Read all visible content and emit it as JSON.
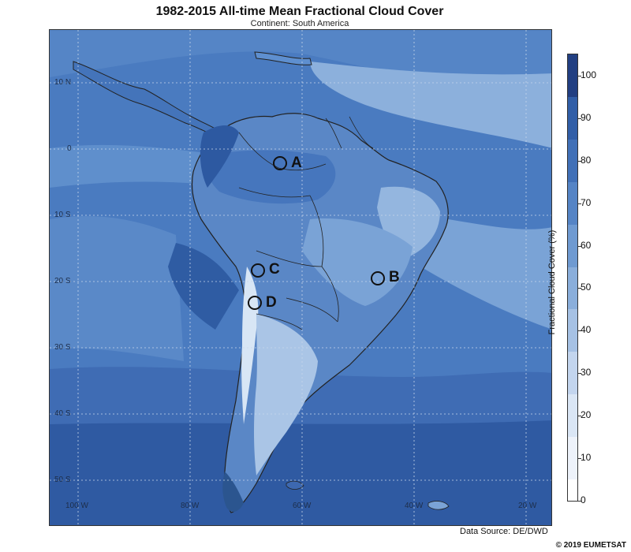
{
  "title": "1982-2015 All-time Mean Fractional Cloud Cover",
  "subtitle": "Continent: South America",
  "colorbar": {
    "title": "Fractional Cloud Cover (%)",
    "ticks": [
      "0",
      "10",
      "20",
      "30",
      "40",
      "50",
      "60",
      "70",
      "80",
      "90",
      "100"
    ],
    "colors": [
      "#ffffff",
      "#edf2fa",
      "#dae6f5",
      "#c3d5ee",
      "#a6c1e4",
      "#8aaedb",
      "#6f9ad1",
      "#5584c5",
      "#4170b7",
      "#315ea7",
      "#223f82"
    ],
    "min": 0,
    "max": 105
  },
  "lat_labels": [
    "10 N",
    "0",
    "10 S",
    "20 S",
    "30 S",
    "40 S",
    "50 S"
  ],
  "lon_labels": [
    "100 W",
    "80 W",
    "60 W",
    "40 W",
    "20 W"
  ],
  "markers": [
    {
      "label": "A"
    },
    {
      "label": "B"
    },
    {
      "label": "C"
    },
    {
      "label": "D"
    }
  ],
  "source": "Data Source: DE/DWD",
  "copyright": "© 2019 EUMETSAT"
}
